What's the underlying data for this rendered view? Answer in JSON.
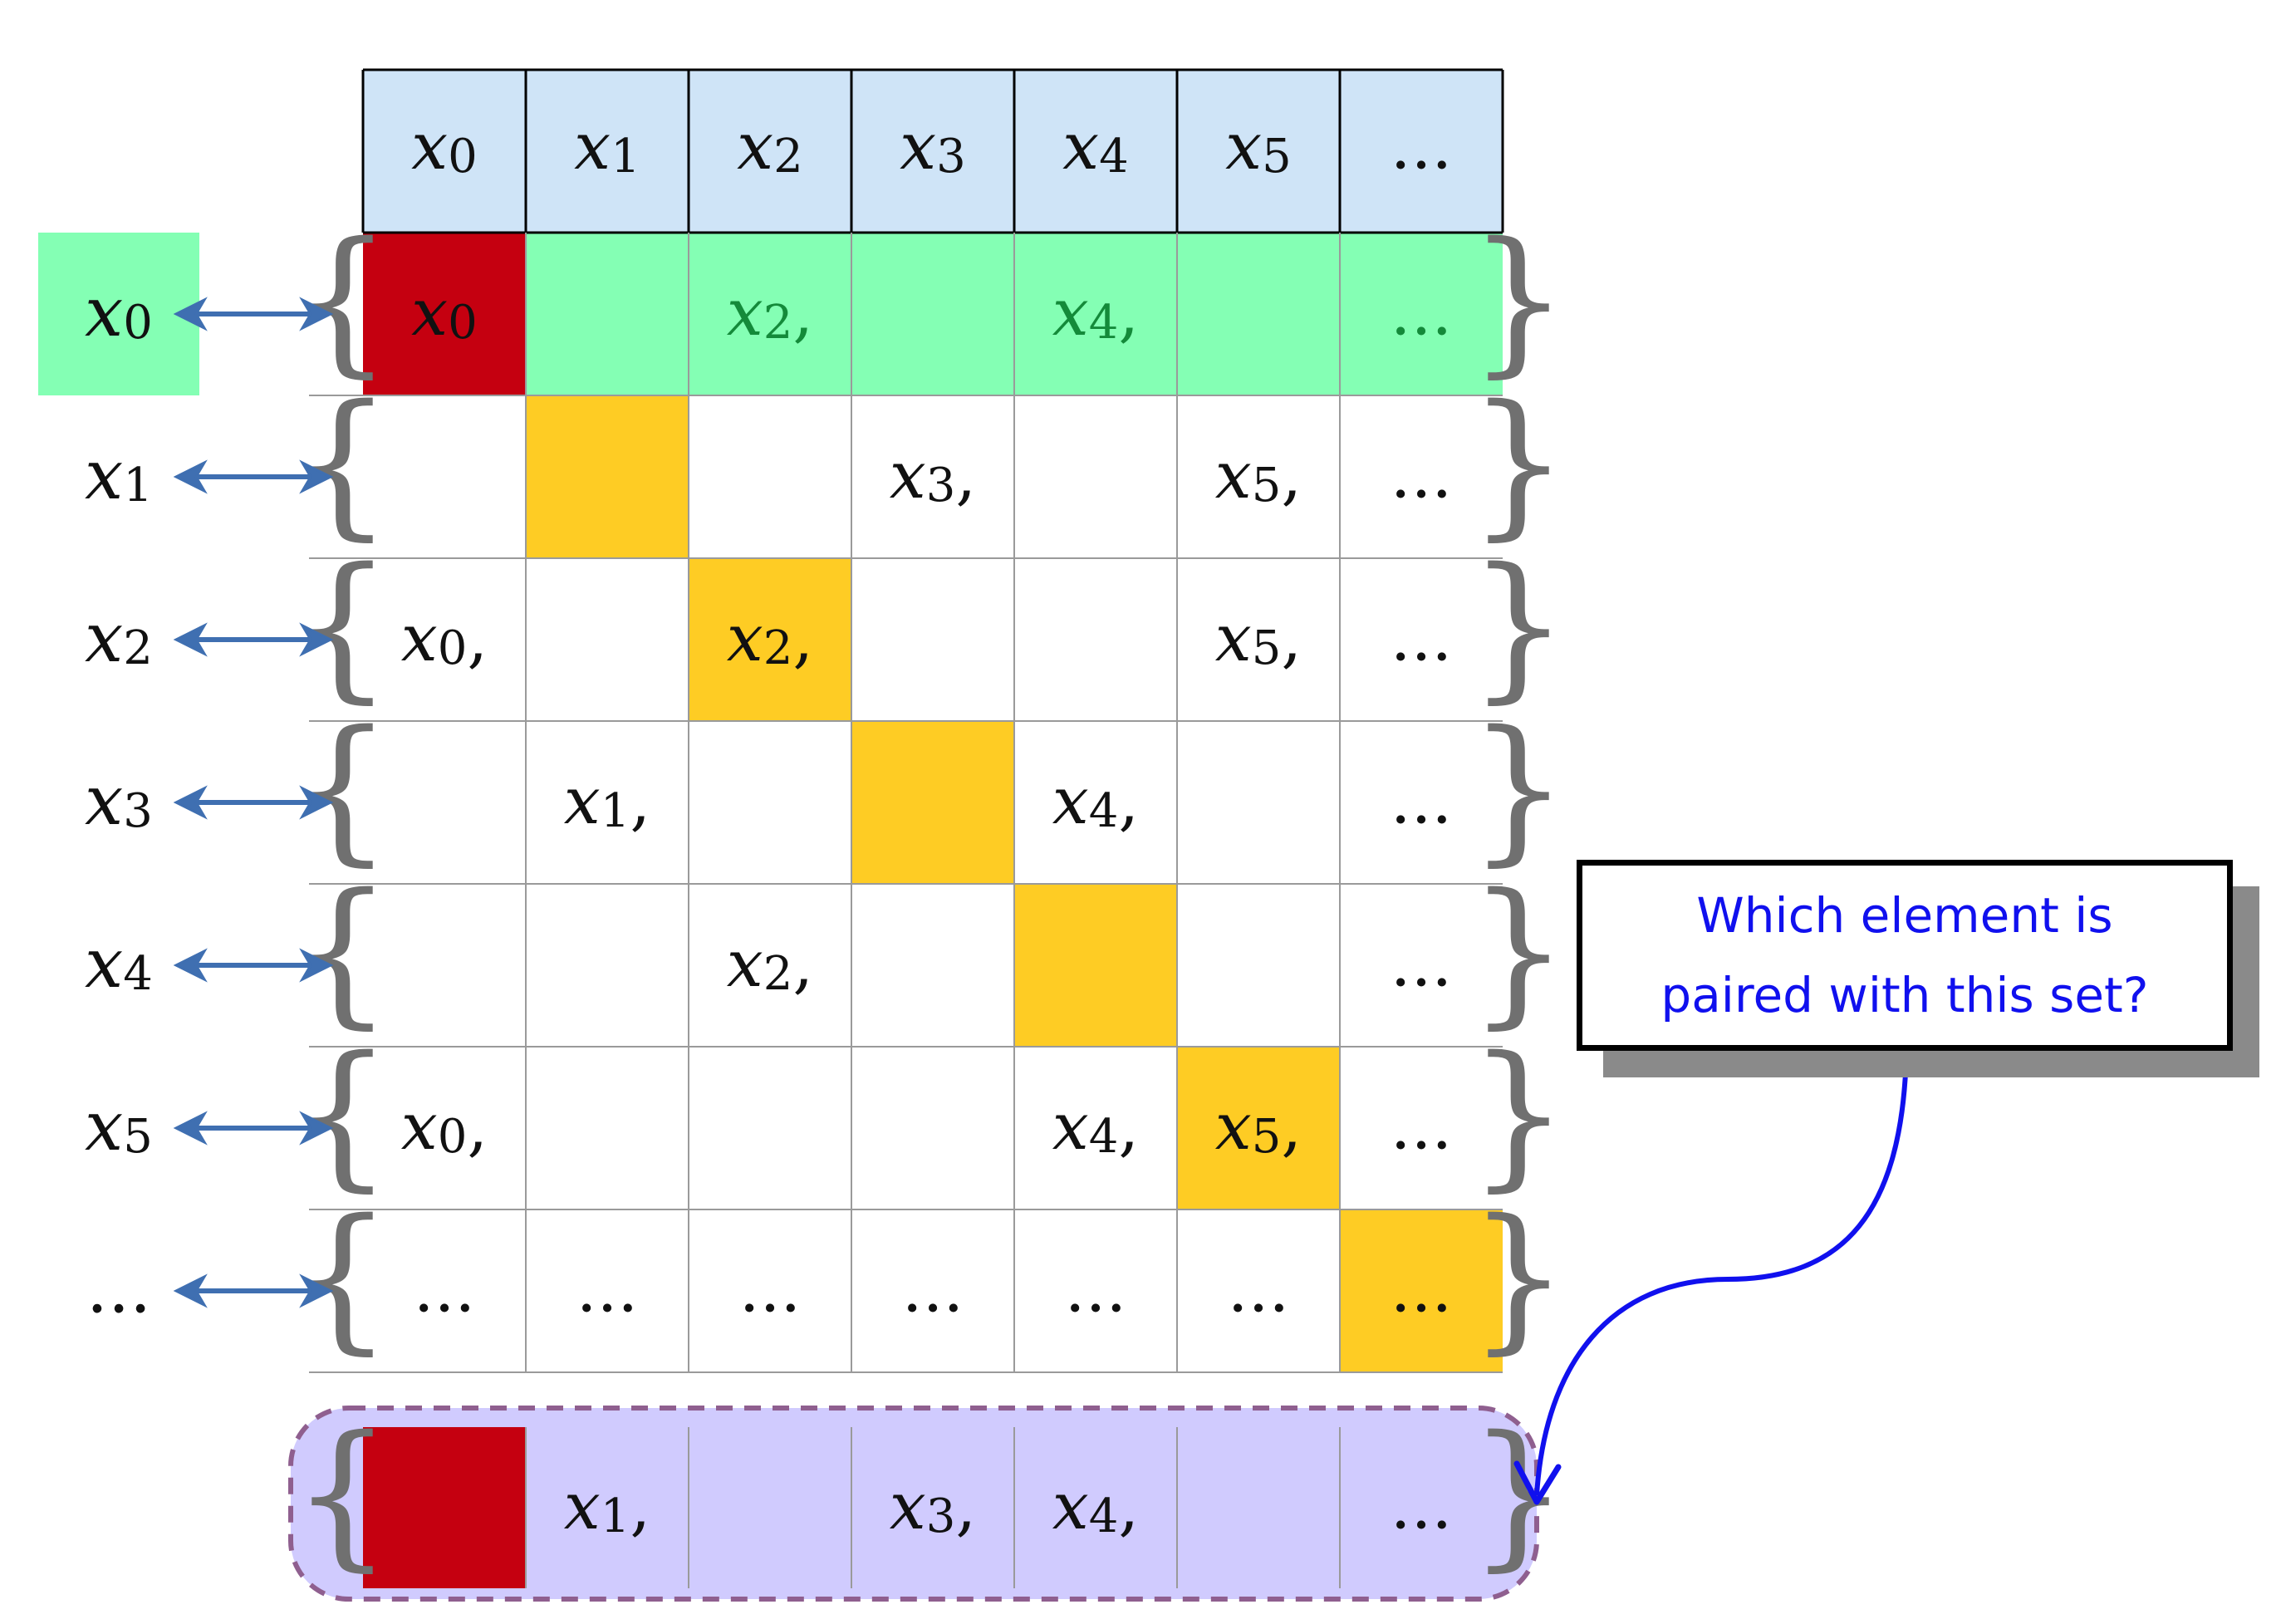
{
  "header_row": [
    "x0",
    "x1",
    "x2",
    "x3",
    "x4",
    "x5",
    "..."
  ],
  "row_labels": [
    "x0",
    "x1",
    "x2",
    "x3",
    "x4",
    "x5",
    "..."
  ],
  "rows": [
    [
      "x0",
      "",
      "x2,",
      "",
      "x4,",
      "",
      "..."
    ],
    [
      "",
      "",
      "",
      "x3,",
      "",
      "x5,",
      "..."
    ],
    [
      "x0,",
      "",
      "x2,",
      "",
      "",
      "x5,",
      "..."
    ],
    [
      "",
      "x1,",
      "",
      "",
      "x4,",
      "",
      "..."
    ],
    [
      "",
      "",
      "x2,",
      "",
      "",
      "",
      "..."
    ],
    [
      "x0,",
      "",
      "",
      "",
      "x4,",
      "x5,",
      "..."
    ],
    [
      "...",
      "...",
      "...",
      "...",
      "...",
      "...",
      "..."
    ]
  ],
  "diagonal_set": [
    "",
    "x1,",
    "",
    "x3,",
    "x4,",
    "",
    "..."
  ],
  "callout": {
    "line1": "Which element is",
    "line2": "paired with this set?"
  },
  "colors": {
    "header_bg": "#cfe4f7",
    "highlight_row_bg": "#84ffb4",
    "highlight_label_bg": "#84ffb4",
    "diagonal_bg": "#fecc24",
    "red": "#c50010",
    "set_bg": "#d0cbfe",
    "set_border": "#8f5f8f",
    "arrow": "#3f6fb1",
    "callout_text": "#1010ee",
    "green_text": "#148a3a"
  }
}
